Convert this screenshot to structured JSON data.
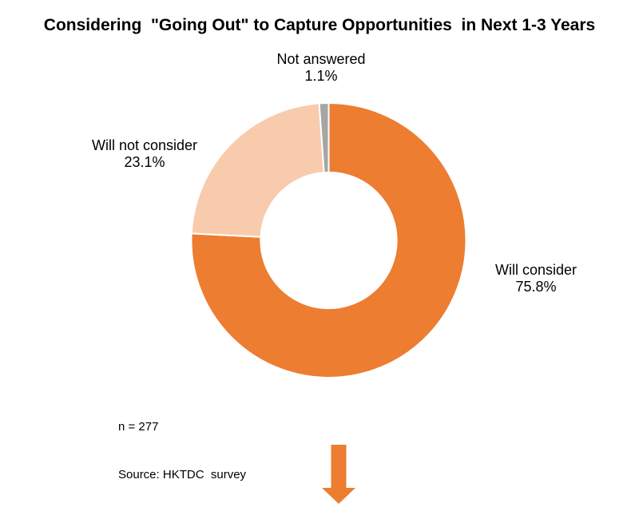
{
  "title": "Considering  \"Going Out\" to Capture Opportunities  in Next 1-3 Years",
  "colors": {
    "accent_orange": "#ED7D31",
    "light_orange": "#F8CBAD",
    "gray": "#A6A6A6",
    "separator_white": "#FFFFFF",
    "text": "#000000",
    "background": "#FFFFFF"
  },
  "chart_data": {
    "type": "pie",
    "subtype": "donut",
    "title": "Considering \"Going Out\" to Capture Opportunities in Next 1-3 Years",
    "categories": [
      "Will consider",
      "Will not consider",
      "Not answered"
    ],
    "values": [
      75.8,
      23.1,
      1.1
    ],
    "value_labels": [
      "75.8%",
      "23.1%",
      "1.1%"
    ],
    "unit": "%",
    "colors": [
      "#ED7D31",
      "#F8CBAD",
      "#A6A6A6"
    ],
    "start_angle_deg": 0,
    "direction": "clockwise",
    "inner_radius_ratio": 0.495,
    "slice_border_color": "#FFFFFF",
    "slice_border_width": 2,
    "legend": "none",
    "label_style": "outside-callouts",
    "annotations": [
      "n = 277",
      "Source: HKTDC  survey"
    ]
  },
  "callouts": [
    {
      "id": "not-answered",
      "line1": "Not answered",
      "line2": "1.1%"
    },
    {
      "id": "will-not-consider",
      "line1": "Will not consider",
      "line2": "23.1%"
    },
    {
      "id": "will-consider",
      "line1": "Will consider",
      "line2": "75.8%"
    }
  ],
  "footnotes": {
    "sample_size": "n = 277",
    "source": "Source: HKTDC  survey"
  },
  "arrow": {
    "meaning": "down-arrow",
    "color": "#ED7D31"
  }
}
